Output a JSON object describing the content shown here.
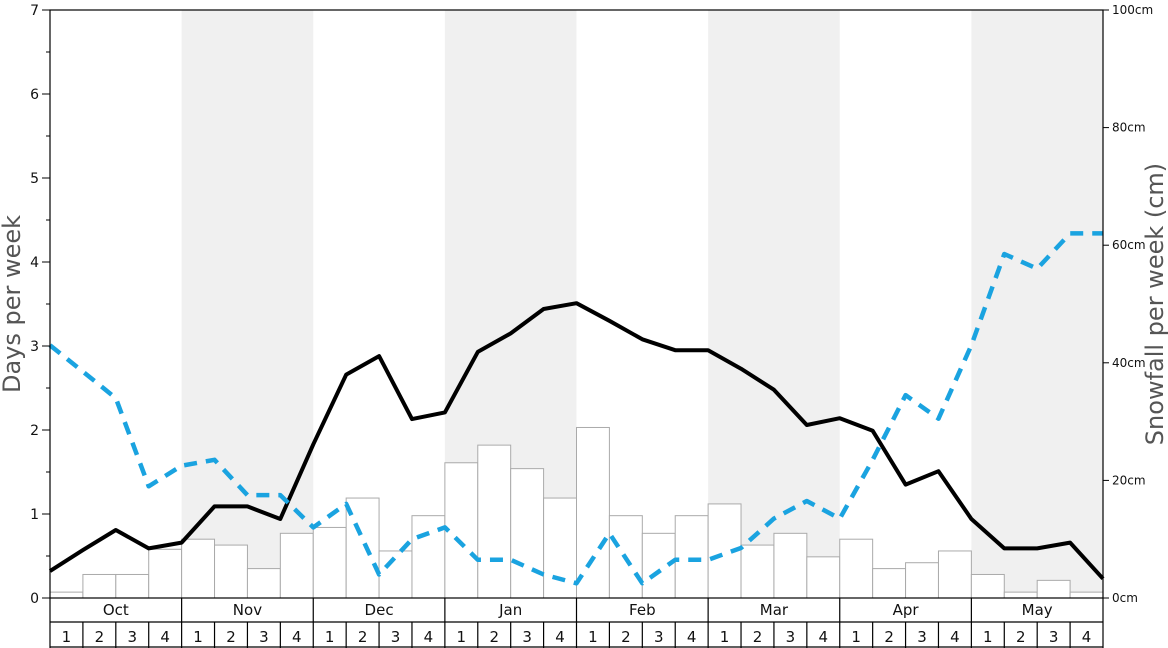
{
  "chart_data": {
    "type": "bar",
    "months": [
      "Oct",
      "Nov",
      "Dec",
      "Jan",
      "Feb",
      "Mar",
      "Apr",
      "May"
    ],
    "weeks": [
      "1",
      "2",
      "3",
      "4"
    ],
    "ylabel_left": "Days per week",
    "ylabel_right": "Snowfall per week (cm)",
    "ylim_left": [
      0,
      7
    ],
    "ylim_right": [
      0,
      100
    ],
    "left_ticks": [
      "0",
      "1",
      "2",
      "3",
      "4",
      "5",
      "6",
      "7"
    ],
    "right_ticks": [
      "0cm",
      "20cm",
      "40cm",
      "60cm",
      "80cm",
      "100cm"
    ],
    "grid": false,
    "legend": "none",
    "colors": {
      "bars": "#ffffff",
      "days_line": "#000000",
      "snow_line": "#1aa3e0",
      "band": "#f0f0f0"
    },
    "series": [
      {
        "type": "bar",
        "axis": "left",
        "values": [
          0.07,
          0.28,
          0.28,
          0.58,
          0.7,
          0.63,
          0.35,
          0.77,
          0.84,
          1.19,
          0.56,
          0.98,
          1.61,
          1.82,
          1.54,
          1.19,
          2.03,
          0.98,
          0.77,
          0.98,
          1.12,
          0.63,
          0.77,
          0.49,
          0.7,
          0.35,
          0.42,
          0.56,
          0.28,
          0.07,
          0.21,
          0.07
        ]
      },
      {
        "type": "line",
        "axis": "left",
        "values": [
          0.32,
          0.57,
          0.81,
          0.59,
          0.66,
          1.09,
          1.09,
          0.94,
          1.83,
          2.66,
          2.88,
          2.13,
          2.21,
          2.93,
          3.15,
          3.44,
          3.51,
          3.3,
          3.08,
          2.95,
          2.95,
          2.73,
          2.48,
          2.06,
          2.14,
          1.99,
          1.35,
          1.51,
          0.94,
          0.59,
          0.59,
          0.66,
          0.23
        ]
      },
      {
        "type": "line",
        "axis": "right",
        "values": [
          43,
          38.5,
          34,
          19,
          22.5,
          23.5,
          17.5,
          17.5,
          12,
          16,
          4,
          10,
          12,
          6.5,
          6.5,
          4,
          2.5,
          11,
          2.5,
          6.5,
          6.5,
          8.5,
          13.5,
          16.5,
          13.5,
          23.5,
          34.5,
          30.5,
          43,
          58.5,
          56,
          62,
          62
        ]
      }
    ]
  }
}
